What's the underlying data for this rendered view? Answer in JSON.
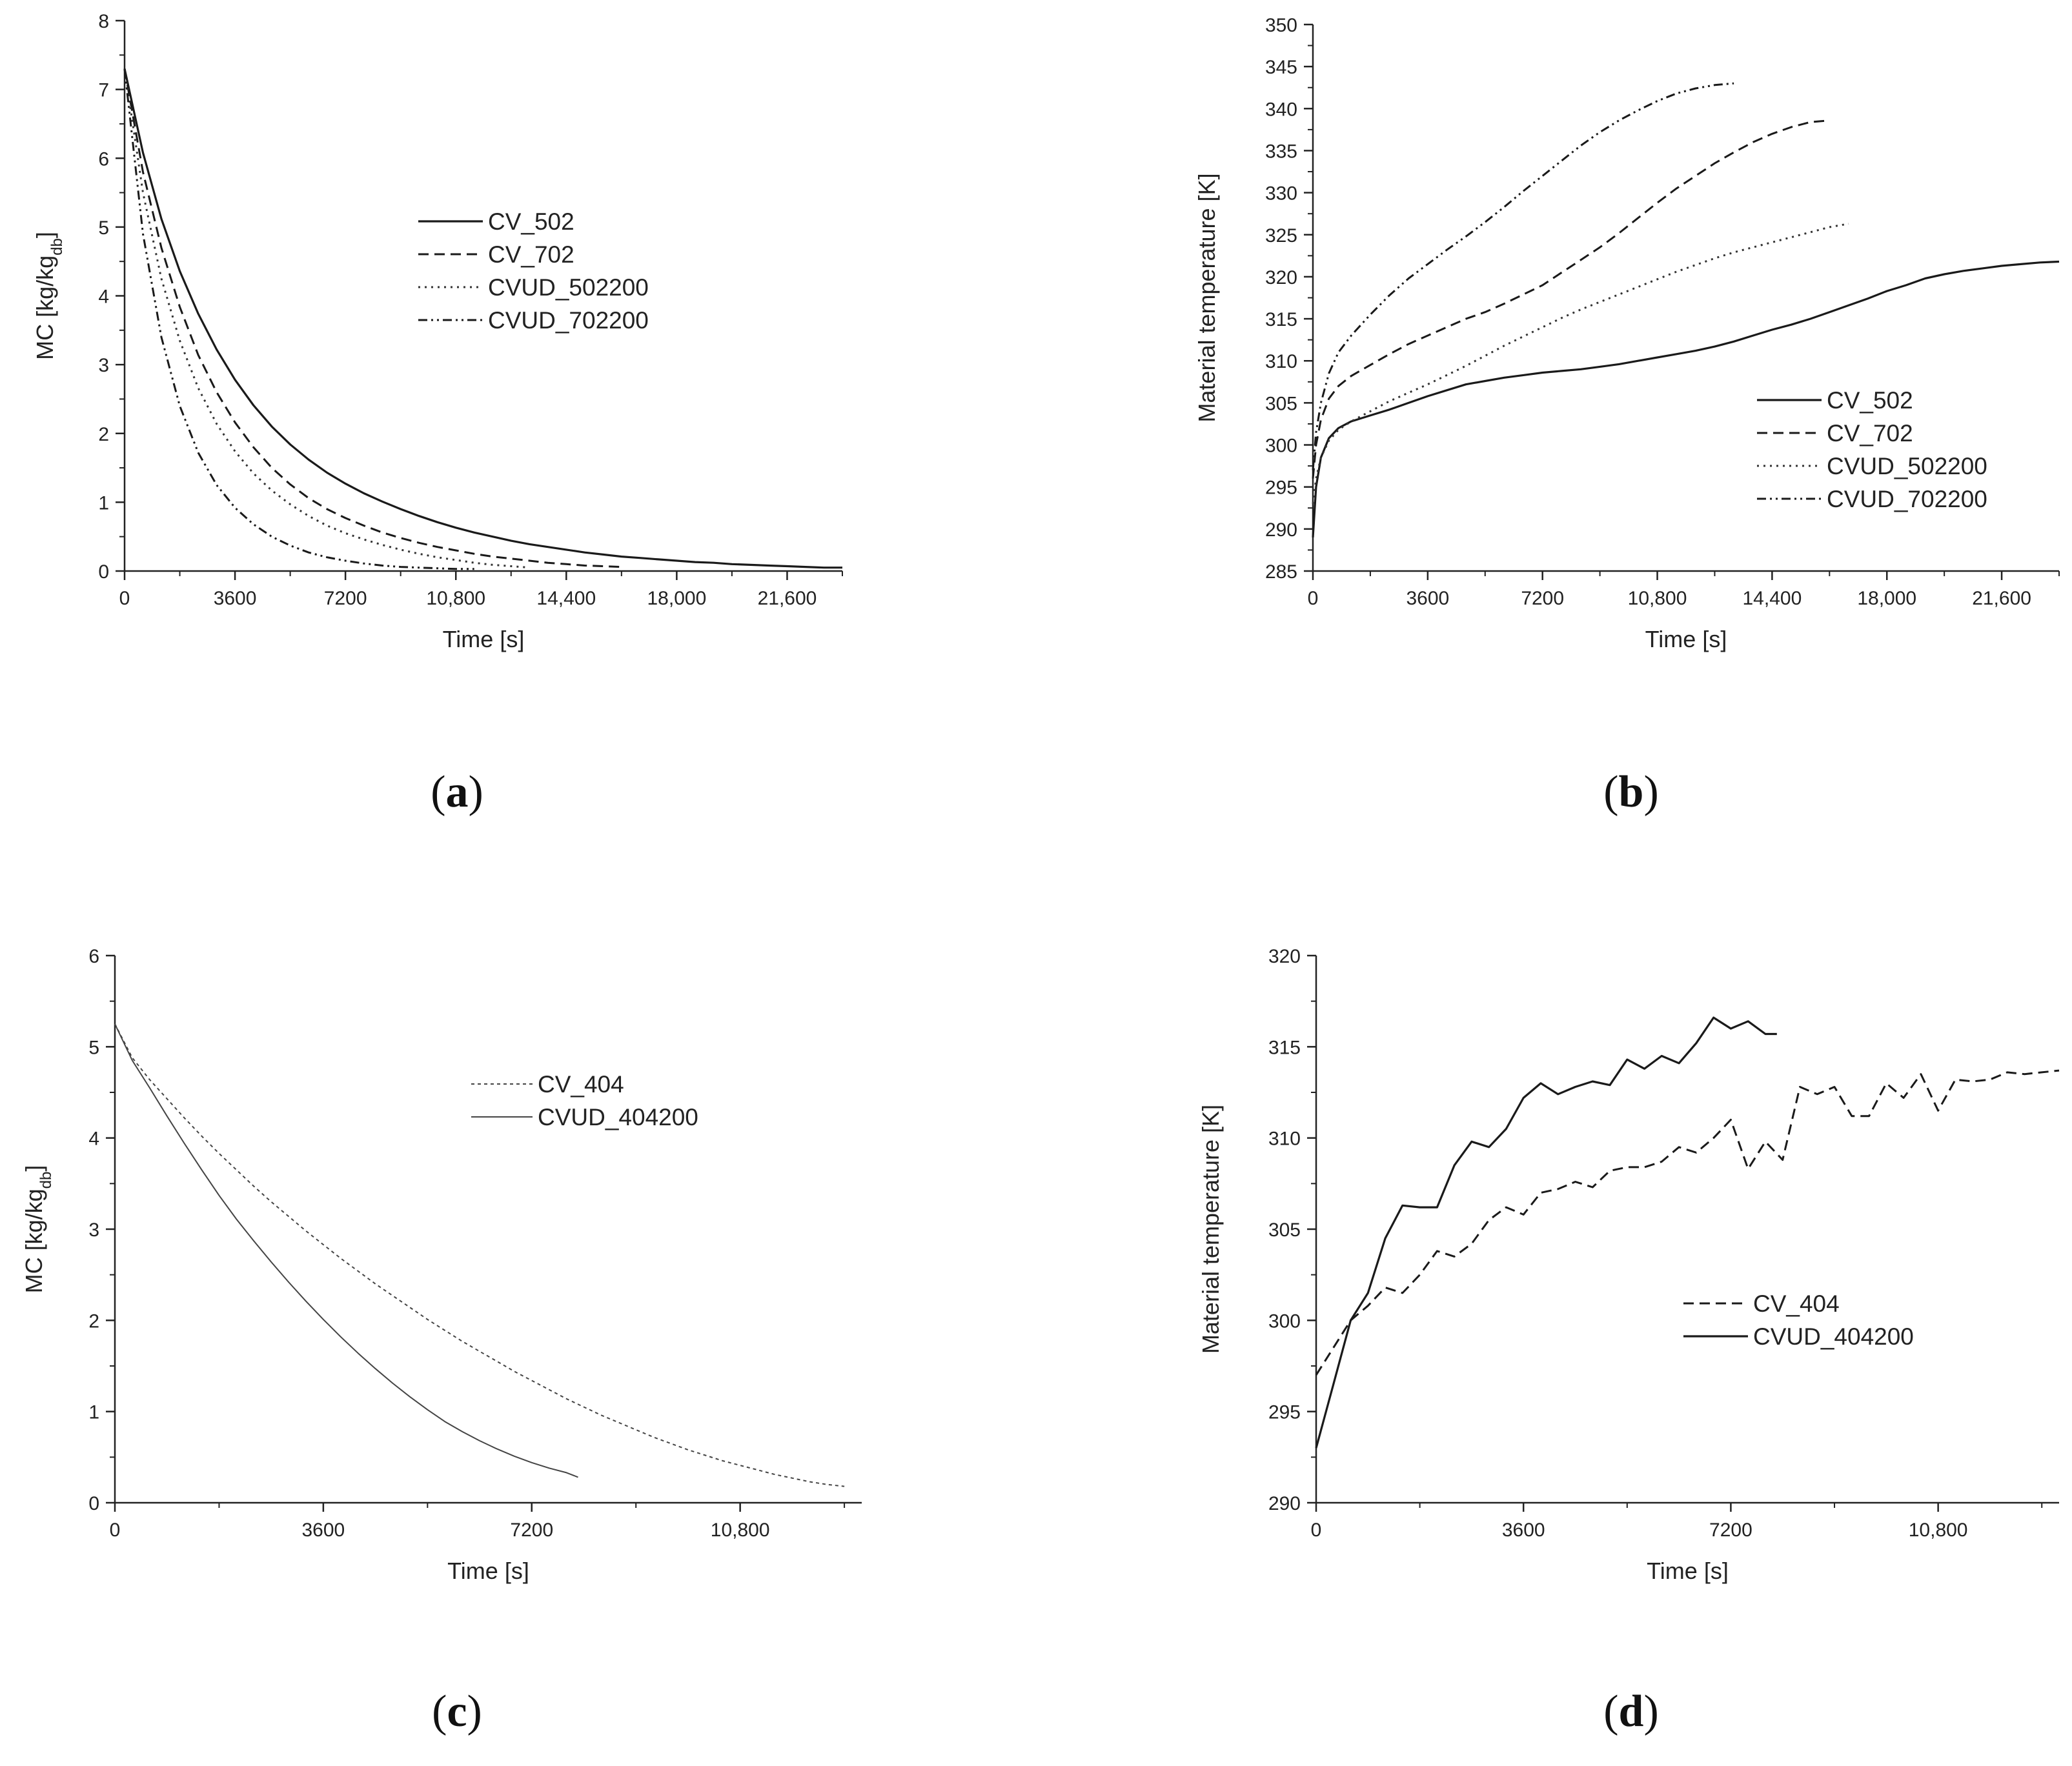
{
  "chart_data": [
    {
      "panel": "a",
      "type": "line",
      "title": "",
      "xlabel": "Time [s]",
      "ylabel": "MC [kg/kg_db]",
      "ylabel_parts": {
        "main": "MC [kg/kg",
        "sub": "db",
        "end": "]"
      },
      "xlim": [
        0,
        23400
      ],
      "ylim": [
        0,
        8
      ],
      "xticks": [
        0,
        3600,
        7200,
        10800,
        14400,
        18000,
        21600
      ],
      "xtick_labels": [
        "0",
        "3600",
        "7200",
        "10,800",
        "14,400",
        "18,000",
        "21,600"
      ],
      "yticks": [
        0,
        1,
        2,
        3,
        4,
        5,
        6,
        7,
        8
      ],
      "ytick_labels": [
        "0",
        "1",
        "2",
        "3",
        "4",
        "5",
        "6",
        "7",
        "8"
      ],
      "legend": "upper-middle",
      "series": [
        {
          "name": "CV_502",
          "style": "solid",
          "x": [
            0,
            600,
            1200,
            1800,
            2400,
            3000,
            3600,
            4200,
            4800,
            5400,
            6000,
            6600,
            7200,
            7800,
            8400,
            9000,
            9600,
            10200,
            10800,
            11400,
            12000,
            12600,
            13200,
            13800,
            14400,
            15000,
            15600,
            16200,
            16800,
            17400,
            18000,
            18600,
            19200,
            19800,
            20400,
            21000,
            21600,
            22200,
            22800,
            23400
          ],
          "y": [
            7.3,
            6.08,
            5.12,
            4.36,
            3.74,
            3.22,
            2.78,
            2.41,
            2.1,
            1.84,
            1.62,
            1.43,
            1.27,
            1.13,
            1.01,
            0.9,
            0.8,
            0.71,
            0.63,
            0.56,
            0.5,
            0.44,
            0.39,
            0.35,
            0.31,
            0.27,
            0.24,
            0.21,
            0.19,
            0.17,
            0.15,
            0.13,
            0.12,
            0.1,
            0.09,
            0.08,
            0.07,
            0.06,
            0.05,
            0.05
          ]
        },
        {
          "name": "CV_702",
          "style": "dashed",
          "x": [
            0,
            600,
            1200,
            1800,
            2400,
            3000,
            3600,
            4200,
            4800,
            5400,
            6000,
            6600,
            7200,
            7800,
            8400,
            9000,
            9600,
            10200,
            10800,
            11400,
            12000,
            12600,
            13200,
            13800,
            14400,
            15000,
            15600,
            16200
          ],
          "y": [
            7.3,
            5.8,
            4.7,
            3.84,
            3.14,
            2.6,
            2.16,
            1.8,
            1.5,
            1.26,
            1.06,
            0.9,
            0.77,
            0.66,
            0.56,
            0.48,
            0.41,
            0.35,
            0.3,
            0.25,
            0.21,
            0.18,
            0.15,
            0.12,
            0.1,
            0.08,
            0.07,
            0.06
          ]
        },
        {
          "name": "CVUD_502200",
          "style": "dotted",
          "x": [
            0,
            600,
            1200,
            1800,
            2400,
            3000,
            3600,
            4200,
            4800,
            5400,
            6000,
            6600,
            7200,
            7800,
            8400,
            9000,
            9600,
            10200,
            10800,
            11400,
            12000,
            12600,
            13200
          ],
          "y": [
            7.3,
            5.5,
            4.25,
            3.35,
            2.66,
            2.14,
            1.74,
            1.42,
            1.17,
            0.97,
            0.8,
            0.66,
            0.55,
            0.46,
            0.38,
            0.31,
            0.25,
            0.2,
            0.16,
            0.12,
            0.09,
            0.07,
            0.05
          ]
        },
        {
          "name": "CVUD_702200",
          "style": "dashdotdot",
          "x": [
            0,
            600,
            1200,
            1800,
            2400,
            3000,
            3600,
            4200,
            4800,
            5400,
            6000,
            6600,
            7200,
            7800,
            8400,
            9000,
            9600,
            10200,
            10800,
            11400
          ],
          "y": [
            7.3,
            4.9,
            3.4,
            2.4,
            1.72,
            1.25,
            0.92,
            0.68,
            0.5,
            0.37,
            0.27,
            0.2,
            0.15,
            0.11,
            0.08,
            0.06,
            0.05,
            0.04,
            0.03,
            0.03
          ]
        }
      ]
    },
    {
      "panel": "b",
      "type": "line",
      "title": "",
      "xlabel": "Time [s]",
      "ylabel": "Material temperature [K]",
      "xlim": [
        0,
        23400
      ],
      "ylim": [
        285,
        350
      ],
      "xticks": [
        0,
        3600,
        7200,
        10800,
        14400,
        18000,
        21600
      ],
      "xtick_labels": [
        "0",
        "3600",
        "7200",
        "10,800",
        "14,400",
        "18,000",
        "21,600"
      ],
      "yticks": [
        285,
        290,
        295,
        300,
        305,
        310,
        315,
        320,
        325,
        330,
        335,
        340,
        345,
        350
      ],
      "ytick_labels": [
        "285",
        "290",
        "295",
        "300",
        "305",
        "310",
        "315",
        "320",
        "325",
        "330",
        "335",
        "340",
        "345",
        "350"
      ],
      "legend": "lower-right",
      "series": [
        {
          "name": "CV_502",
          "style": "solid",
          "x": [
            0,
            100,
            250,
            500,
            800,
            1200,
            1800,
            2400,
            3000,
            3600,
            4200,
            4800,
            5400,
            6000,
            6600,
            7200,
            7800,
            8400,
            9000,
            9600,
            10200,
            10800,
            11400,
            12000,
            12600,
            13200,
            13800,
            14400,
            15000,
            15600,
            16200,
            16800,
            17400,
            18000,
            18600,
            19200,
            19800,
            20400,
            21000,
            21600,
            22200,
            22800,
            23400
          ],
          "y": [
            289,
            295,
            298.5,
            300.8,
            302,
            302.8,
            303.5,
            304.2,
            305,
            305.8,
            306.5,
            307.2,
            307.6,
            308,
            308.3,
            308.6,
            308.8,
            309,
            309.3,
            309.6,
            310,
            310.4,
            310.8,
            311.2,
            311.7,
            312.3,
            313,
            313.7,
            314.3,
            315,
            315.8,
            316.6,
            317.4,
            318.3,
            319,
            319.8,
            320.3,
            320.7,
            321,
            321.3,
            321.5,
            321.7,
            321.8
          ]
        },
        {
          "name": "CV_702",
          "style": "dashed",
          "x": [
            0,
            100,
            250,
            500,
            800,
            1200,
            1800,
            2400,
            3000,
            3600,
            4200,
            4800,
            5400,
            6000,
            6600,
            7200,
            7800,
            8400,
            9000,
            9600,
            10200,
            10800,
            11400,
            12000,
            12600,
            13200,
            13800,
            14400,
            15000,
            15600,
            16200
          ],
          "y": [
            296,
            300,
            303,
            305.5,
            307,
            308.2,
            309.5,
            310.8,
            312,
            313,
            314,
            315,
            315.8,
            316.8,
            317.9,
            319,
            320.5,
            322,
            323.5,
            325.2,
            327,
            328.8,
            330.5,
            332,
            333.5,
            334.8,
            336,
            337,
            337.8,
            338.4,
            338.6
          ]
        },
        {
          "name": "CVUD_502200",
          "style": "dotted",
          "x": [
            0,
            100,
            250,
            500,
            800,
            1200,
            1800,
            2400,
            3000,
            3600,
            4200,
            4800,
            5400,
            6000,
            6600,
            7200,
            7800,
            8400,
            9000,
            9600,
            10200,
            10800,
            11400,
            12000,
            12600,
            13200,
            13800,
            14400,
            15000,
            15600,
            16200,
            16800
          ],
          "y": [
            293,
            296,
            298.5,
            300.5,
            301.8,
            302.8,
            304,
            305.2,
            306.2,
            307.2,
            308.3,
            309.4,
            310.6,
            311.8,
            312.9,
            314,
            315.1,
            316.1,
            317,
            317.9,
            318.8,
            319.7,
            320.6,
            321.4,
            322.2,
            322.9,
            323.5,
            324.1,
            324.7,
            325.3,
            325.9,
            326.3
          ]
        },
        {
          "name": "CVUD_702200",
          "style": "dashdotdot",
          "x": [
            0,
            100,
            250,
            500,
            800,
            1200,
            1800,
            2400,
            3000,
            3600,
            4200,
            4800,
            5400,
            6000,
            6600,
            7200,
            7800,
            8400,
            9000,
            9600,
            10200,
            10800,
            11400,
            12000,
            12600,
            13200
          ],
          "y": [
            297,
            301.5,
            305,
            308.5,
            311,
            313,
            315.5,
            317.8,
            319.8,
            321.5,
            323.2,
            324.8,
            326.5,
            328.3,
            330.2,
            332,
            333.8,
            335.6,
            337.2,
            338.6,
            339.8,
            340.9,
            341.8,
            342.4,
            342.8,
            343
          ]
        }
      ]
    },
    {
      "panel": "c",
      "type": "line",
      "title": "",
      "xlabel": "Time [s]",
      "ylabel": "MC [kg/kg_db]",
      "ylabel_parts": {
        "main": "MC [kg/kg",
        "sub": "db",
        "end": "]"
      },
      "xlim": [
        0,
        12900
      ],
      "ylim": [
        0,
        6
      ],
      "xticks": [
        0,
        3600,
        7200,
        10800
      ],
      "xtick_labels": [
        "0",
        "3600",
        "7200",
        "10,800"
      ],
      "yticks": [
        0,
        1,
        2,
        3,
        4,
        5,
        6
      ],
      "ytick_labels": [
        "0",
        "1",
        "2",
        "3",
        "4",
        "5",
        "6"
      ],
      "legend": "upper-right",
      "series": [
        {
          "name": "CV_404",
          "style": "dotted-thin",
          "x": [
            0,
            300,
            600,
            900,
            1200,
            1500,
            1800,
            2100,
            2400,
            2700,
            3000,
            3300,
            3600,
            3900,
            4200,
            4500,
            4800,
            5100,
            5400,
            5700,
            6000,
            6300,
            6600,
            6900,
            7200,
            7500,
            7800,
            8100,
            8400,
            8700,
            9000,
            9300,
            9600,
            9900,
            10200,
            10500,
            10800,
            11100,
            11400,
            11700,
            12000,
            12300,
            12600
          ],
          "y": [
            5.25,
            4.88,
            4.64,
            4.43,
            4.22,
            4.02,
            3.83,
            3.65,
            3.47,
            3.3,
            3.14,
            2.98,
            2.83,
            2.68,
            2.54,
            2.4,
            2.27,
            2.14,
            2.01,
            1.89,
            1.77,
            1.66,
            1.55,
            1.44,
            1.34,
            1.24,
            1.14,
            1.05,
            0.96,
            0.88,
            0.8,
            0.72,
            0.65,
            0.58,
            0.52,
            0.46,
            0.41,
            0.36,
            0.31,
            0.27,
            0.23,
            0.2,
            0.18
          ]
        },
        {
          "name": "CVUD_404200",
          "style": "solid-thin",
          "x": [
            0,
            300,
            600,
            900,
            1200,
            1500,
            1800,
            2100,
            2400,
            2700,
            3000,
            3300,
            3600,
            3900,
            4200,
            4500,
            4800,
            5100,
            5400,
            5700,
            6000,
            6300,
            6600,
            6900,
            7200,
            7500,
            7800,
            8000
          ],
          "y": [
            5.25,
            4.85,
            4.55,
            4.24,
            3.94,
            3.65,
            3.37,
            3.11,
            2.87,
            2.64,
            2.42,
            2.21,
            2.01,
            1.82,
            1.64,
            1.47,
            1.31,
            1.16,
            1.02,
            0.89,
            0.78,
            0.68,
            0.59,
            0.51,
            0.44,
            0.38,
            0.33,
            0.28
          ]
        }
      ]
    },
    {
      "panel": "d",
      "type": "line",
      "title": "",
      "xlabel": "Time [s]",
      "ylabel": "Material temperature [K]",
      "xlim": [
        0,
        12900
      ],
      "ylim": [
        290,
        320
      ],
      "xticks": [
        0,
        3600,
        7200,
        10800
      ],
      "xtick_labels": [
        "0",
        "3600",
        "7200",
        "10,800"
      ],
      "yticks": [
        290,
        295,
        300,
        305,
        310,
        315,
        320
      ],
      "ytick_labels": [
        "290",
        "295",
        "300",
        "305",
        "310",
        "315",
        "320"
      ],
      "legend": "lower-middle",
      "series": [
        {
          "name": "CV_404",
          "style": "dashed",
          "x": [
            0,
            300,
            600,
            900,
            1200,
            1500,
            1800,
            2100,
            2400,
            2700,
            3000,
            3300,
            3600,
            3900,
            4200,
            4500,
            4800,
            5100,
            5400,
            5700,
            6000,
            6300,
            6600,
            6900,
            7200,
            7500,
            7800,
            8100,
            8400,
            8700,
            9000,
            9300,
            9600,
            9900,
            10200,
            10500,
            10800,
            11100,
            11400,
            11700,
            12000,
            12300,
            12600,
            12900
          ],
          "y": [
            297,
            298.5,
            300,
            300.8,
            301.8,
            301.5,
            302.5,
            303.8,
            303.5,
            304.2,
            305.5,
            306.2,
            305.8,
            307,
            307.2,
            307.6,
            307.3,
            308.2,
            308.4,
            308.4,
            308.7,
            309.5,
            309.2,
            310,
            311,
            308.3,
            309.8,
            308.8,
            312.8,
            312.4,
            312.8,
            311.2,
            311.2,
            313,
            312.2,
            313.5,
            311.5,
            313.2,
            313.1,
            313.2,
            313.6,
            313.5,
            313.6,
            313.7
          ]
        },
        {
          "name": "CVUD_404200",
          "style": "solid",
          "x": [
            0,
            300,
            600,
            900,
            1200,
            1500,
            1800,
            2100,
            2400,
            2700,
            3000,
            3300,
            3600,
            3900,
            4200,
            4500,
            4800,
            5100,
            5400,
            5700,
            6000,
            6300,
            6600,
            6900,
            7200,
            7500,
            7800,
            8000
          ],
          "y": [
            293,
            296.5,
            300,
            301.5,
            304.5,
            306.3,
            306.2,
            306.2,
            308.5,
            309.8,
            309.5,
            310.5,
            312.2,
            313,
            312.4,
            312.8,
            313.1,
            312.9,
            314.3,
            313.8,
            314.5,
            314.1,
            315.2,
            316.6,
            316,
            316.4,
            315.7,
            315.7
          ]
        }
      ]
    }
  ],
  "panel_labels": [
    "a",
    "b",
    "c",
    "d"
  ]
}
